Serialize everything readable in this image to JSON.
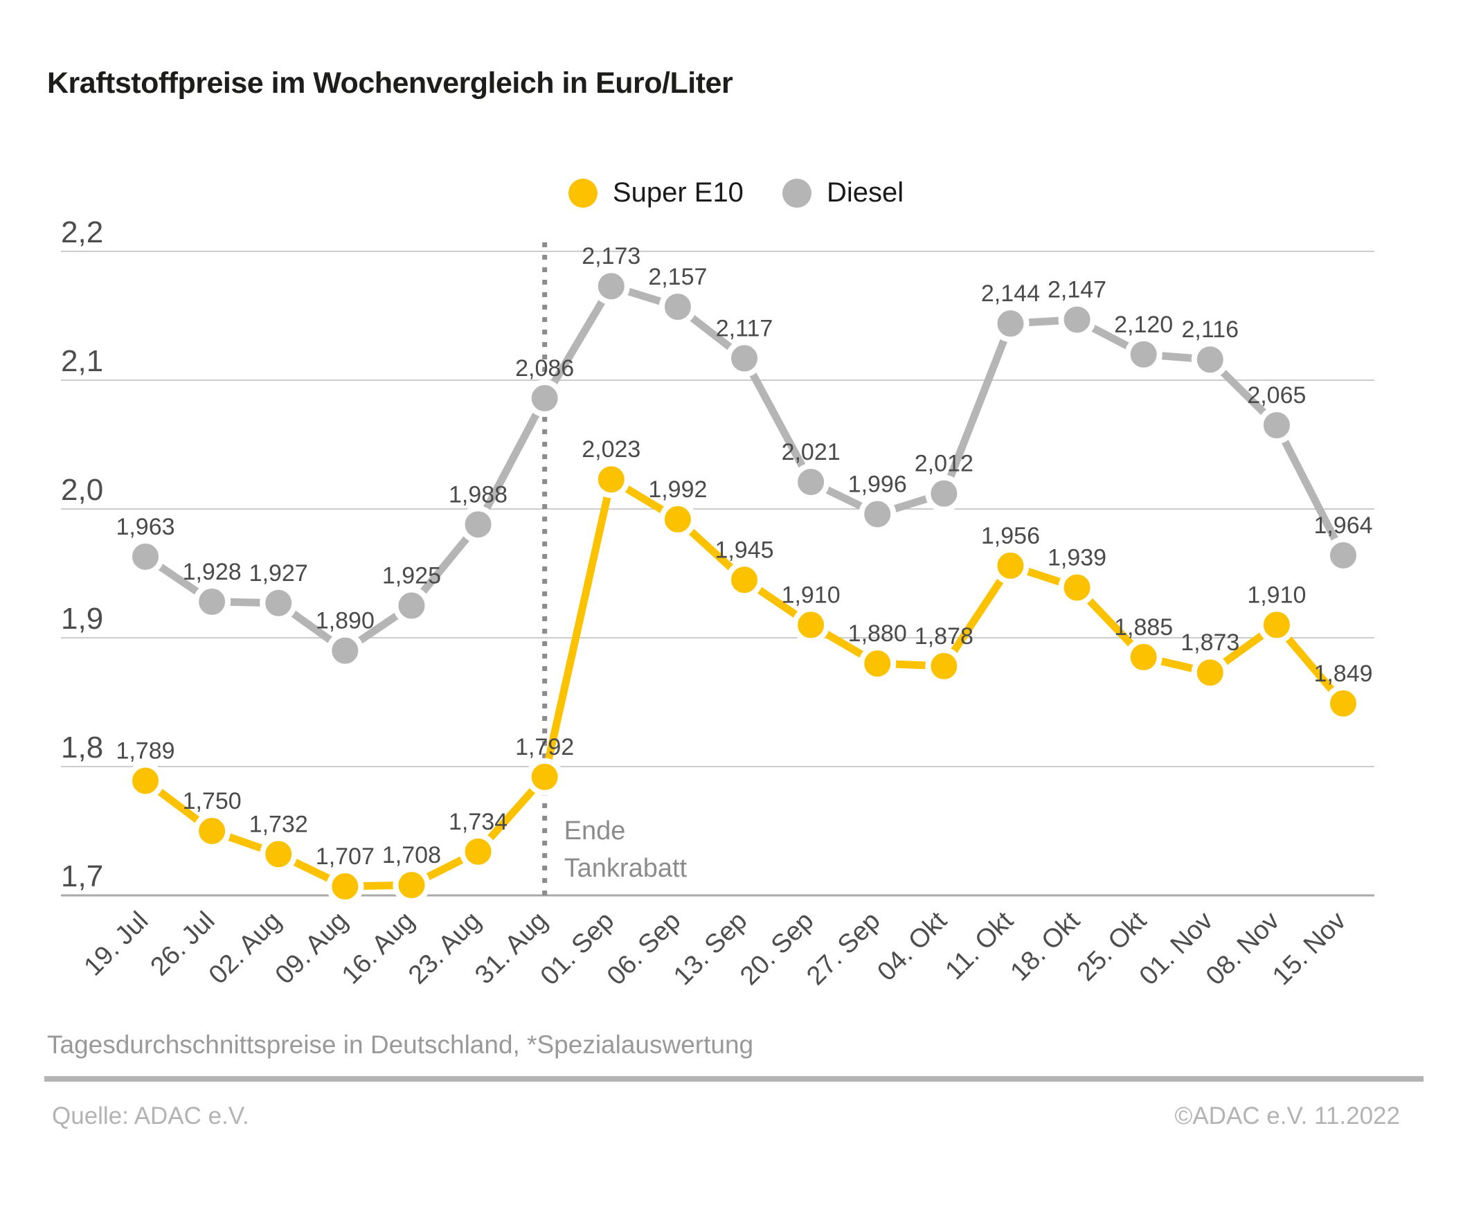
{
  "title": "Kraftstoffpreise im Wochenvergleich in Euro/Liter",
  "footnote": "Tagesdurchschnittspreise in Deutschland, *Spezialauswertung",
  "source": "Quelle: ADAC e.V.",
  "copyright": "©ADAC e.V.  11.2022",
  "chart_data": {
    "type": "line",
    "title": "Kraftstoffpreise im Wochenvergleich in Euro/Liter",
    "categories": [
      "19. Jul",
      "26. Jul",
      "02. Aug",
      "09. Aug",
      "16. Aug",
      "23. Aug",
      "31. Aug",
      "01. Sep",
      "06. Sep",
      "13. Sep",
      "20. Sep",
      "27. Sep",
      "04. Okt",
      "11. Okt",
      "18. Okt",
      "25. Okt",
      "01. Nov",
      "08. Nov",
      "15. Nov"
    ],
    "series": [
      {
        "name": "Super E10",
        "color": "#FCC200",
        "values": [
          1.789,
          1.75,
          1.732,
          1.707,
          1.708,
          1.734,
          1.792,
          2.023,
          1.992,
          1.945,
          1.91,
          1.88,
          1.878,
          1.956,
          1.939,
          1.885,
          1.873,
          1.91,
          1.849
        ]
      },
      {
        "name": "Diesel",
        "color": "#B5B5B5",
        "values": [
          1.963,
          1.928,
          1.927,
          1.89,
          1.925,
          1.988,
          2.086,
          2.173,
          2.157,
          2.117,
          2.021,
          1.996,
          2.012,
          2.144,
          2.147,
          2.12,
          2.116,
          2.065,
          1.964
        ]
      }
    ],
    "ylim": [
      1.7,
      2.2
    ],
    "yticks": [
      1.7,
      1.8,
      1.9,
      2.0,
      2.1,
      2.2
    ],
    "ytick_labels": [
      "1,7",
      "1,8",
      "1,9",
      "2,0",
      "2,1",
      "2,2"
    ],
    "decimal_separator": ",",
    "grid": "horizontal",
    "legend_position": "top",
    "vline": {
      "category": "31. Aug",
      "label_lines": [
        "Ende",
        "Tankrabatt"
      ]
    },
    "colors": {
      "gridline": "#cccccc",
      "axis_line": "#a9a9a9",
      "data_label_text": "#4a4a4a",
      "tick_label_text": "#4d4d4d",
      "annotation_text": "#8c8c8c",
      "annotation_line": "#8c8c8c"
    }
  }
}
